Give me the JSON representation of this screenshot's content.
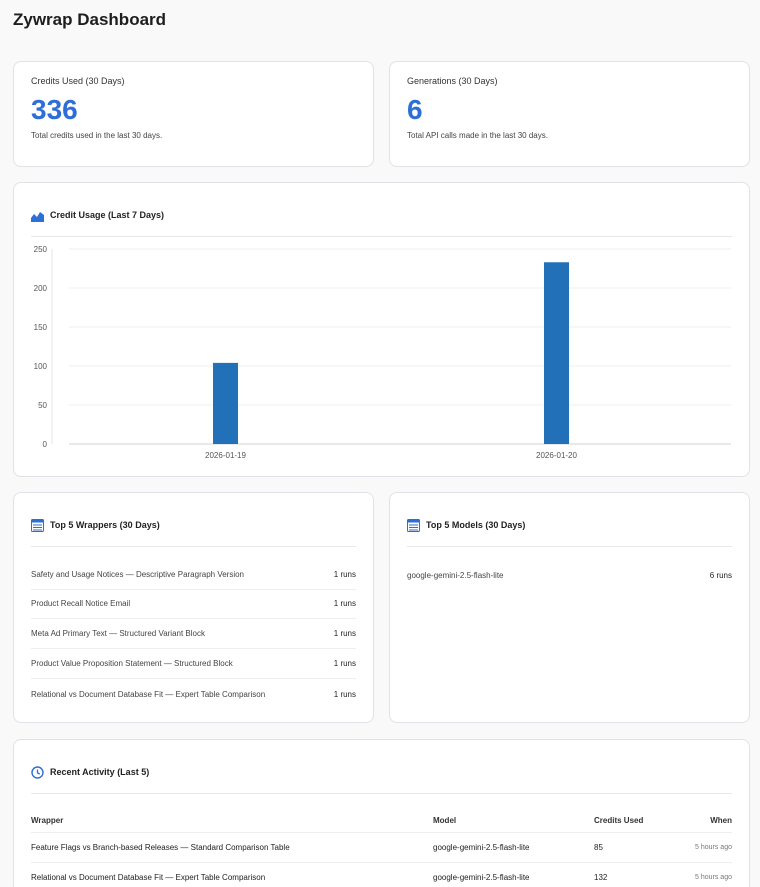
{
  "page": {
    "title": "Zywrap Dashboard"
  },
  "stats": [
    {
      "label": "Credits Used (30 Days)",
      "value": "336",
      "description": "Total credits used in the last 30 days."
    },
    {
      "label": "Generations (30 Days)",
      "value": "6",
      "description": "Total API calls made in the last 30 days."
    }
  ],
  "usage_card": {
    "title": "Credit Usage (Last 7 Days)",
    "icon": "area-chart-icon"
  },
  "chart_data": {
    "type": "bar",
    "categories": [
      "2026-01-19",
      "2026-01-20"
    ],
    "values": [
      104,
      233
    ],
    "ylim": [
      0,
      250
    ],
    "yticks": [
      0,
      50,
      100,
      150,
      200,
      250
    ],
    "grid": true,
    "bar_color": "#2271b8"
  },
  "top_wrappers": {
    "title": "Top 5 Wrappers (30 Days)",
    "icon": "list-icon",
    "items": [
      {
        "name": "Safety and Usage Notices — Descriptive Paragraph Version",
        "runs": "1 runs"
      },
      {
        "name": "Product Recall Notice Email",
        "runs": "1 runs"
      },
      {
        "name": "Meta Ad Primary Text — Structured Variant Block",
        "runs": "1 runs"
      },
      {
        "name": "Product Value Proposition Statement — Structured Block",
        "runs": "1 runs"
      },
      {
        "name": "Relational vs Document Database Fit — Expert Table Comparison",
        "runs": "1 runs"
      }
    ]
  },
  "top_models": {
    "title": "Top 5 Models (30 Days)",
    "icon": "list-icon",
    "items": [
      {
        "name": "google-gemini-2.5-flash-lite",
        "runs": "6 runs"
      }
    ]
  },
  "recent_activity": {
    "title": "Recent Activity (Last 5)",
    "icon": "clock-icon",
    "columns": {
      "wrapper": "Wrapper",
      "model": "Model",
      "credits": "Credits Used",
      "when": "When"
    },
    "rows": [
      {
        "wrapper": "Feature Flags vs Branch-based Releases — Standard Comparison Table",
        "model": "google-gemini-2.5-flash-lite",
        "credits": "85",
        "when": "5 hours ago"
      },
      {
        "wrapper": "Relational vs Document Database Fit — Expert Table Comparison",
        "model": "google-gemini-2.5-flash-lite",
        "credits": "132",
        "when": "5 hours ago"
      }
    ]
  },
  "colors": {
    "accent": "#2d6fd6",
    "bar": "#2271b8"
  }
}
